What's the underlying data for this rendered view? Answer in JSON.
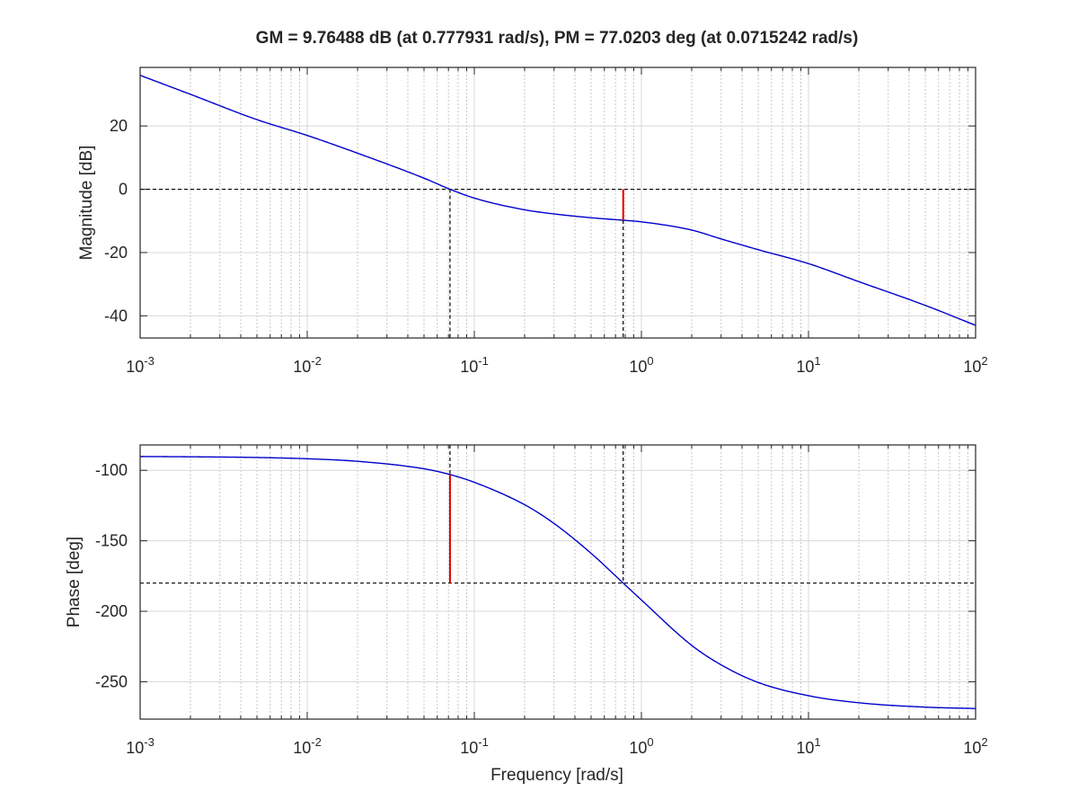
{
  "chart_data": {
    "type": "line",
    "title": "GM = 9.76488 dB (at 0.777931 rad/s),   PM = 77.0203 deg (at 0.0715242 rad/s)",
    "gain_margin": {
      "value_db": 9.76488,
      "frequency": 0.777931
    },
    "phase_margin": {
      "value_deg": 77.0203,
      "frequency": 0.0715242
    },
    "x_ticks": [
      "10-3",
      "10-2",
      "10-1",
      "100",
      "101",
      "102"
    ],
    "xlim": [
      0.001,
      100
    ],
    "xscale": "log",
    "xlabel": "Frequency [rad/s]",
    "grid": true,
    "panels": [
      {
        "name": "magnitude",
        "ylabel": "Magnitude [dB]",
        "ylim": [
          -47,
          38.5
        ],
        "y_ticks": [
          20,
          0,
          -20,
          -40
        ],
        "reference_line": 0,
        "series": [
          {
            "name": "magnitude",
            "x": [
              0.001,
              0.002,
              0.005,
              0.01,
              0.02,
              0.05,
              0.0715,
              0.1,
              0.2,
              0.3,
              0.5,
              0.778,
              1,
              2,
              3,
              5,
              10,
              20,
              50,
              100
            ],
            "y": [
              36,
              30,
              22,
              17,
              11.4,
              3.5,
              0,
              -2.8,
              -6.5,
              -7.8,
              -9,
              -9.8,
              -10.3,
              -12.9,
              -15.7,
              -19.1,
              -23.5,
              -29.2,
              -36.7,
              -43
            ]
          }
        ]
      },
      {
        "name": "phase",
        "ylabel": "Phase [deg]",
        "ylim": [
          -276.5,
          -82
        ],
        "y_ticks": [
          -100,
          -150,
          -200,
          -250
        ],
        "reference_line": -180,
        "series": [
          {
            "name": "phase",
            "x": [
              0.001,
              0.002,
              0.005,
              0.01,
              0.02,
              0.05,
              0.0715,
              0.1,
              0.2,
              0.3,
              0.5,
              0.778,
              1,
              2,
              3,
              5,
              10,
              20,
              50,
              100
            ],
            "y": [
              -90.2,
              -90.4,
              -90.9,
              -91.8,
              -93.6,
              -98.9,
              -103,
              -108.5,
              -124.4,
              -137.7,
              -158.9,
              -180,
              -192,
              -224.2,
              -238,
              -250.5,
              -259.9,
              -264.9,
              -268,
              -269
            ]
          }
        ]
      }
    ]
  }
}
